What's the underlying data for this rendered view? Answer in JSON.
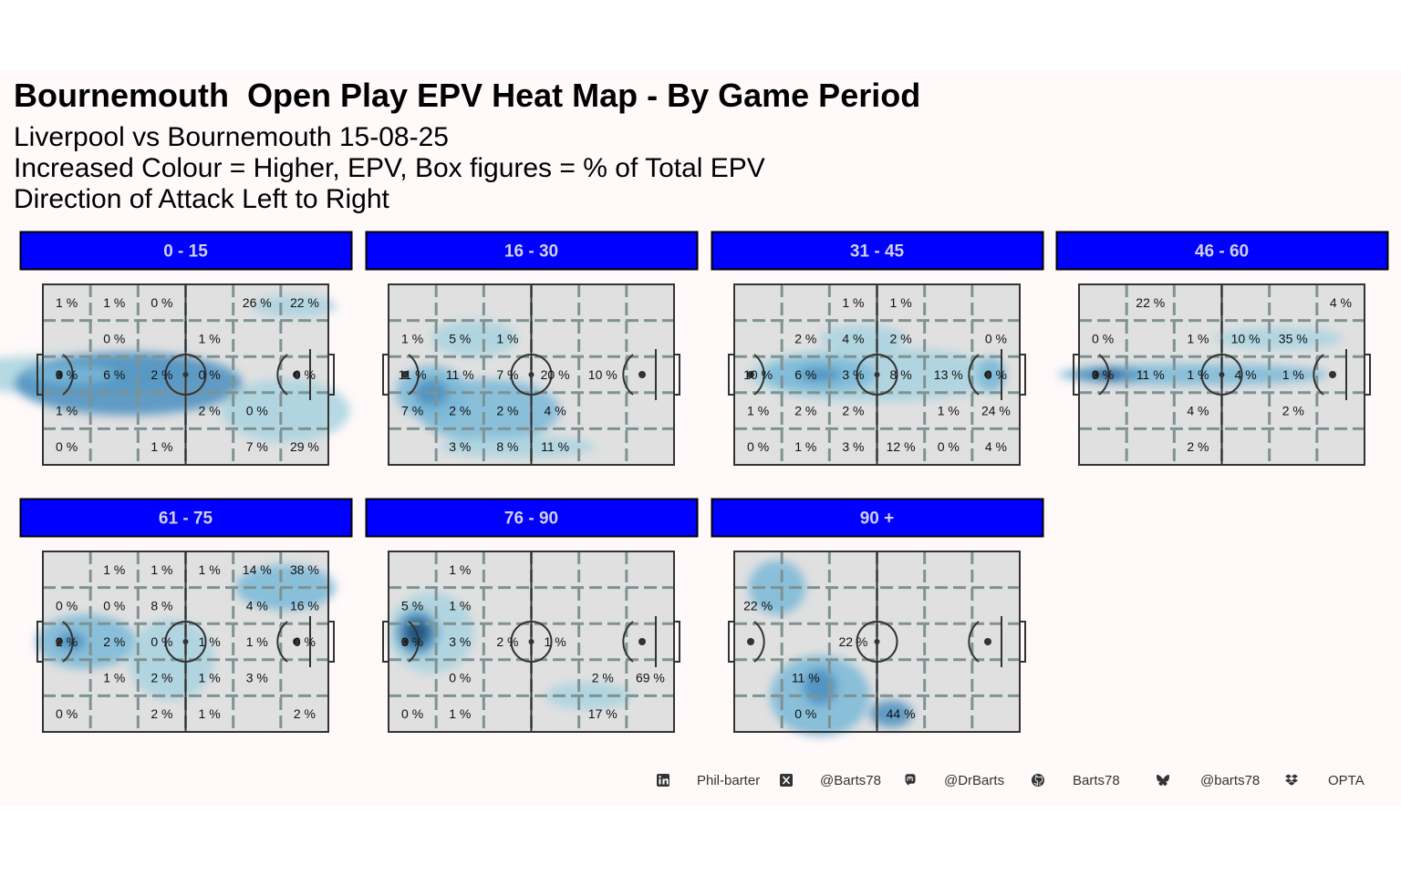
{
  "title": "Bournemouth  Open Play EPV Heat Map - By Game Period",
  "subtitle_lines": [
    "Liverpool vs Bournemouth 15-08-25",
    "Increased Colour = Higher, EPV, Box figures = % of Total EPV",
    "Direction of Attack Left to Right"
  ],
  "colors": {
    "background": "#fff9f9",
    "strip_fill": "#0000ff",
    "strip_text": "#cfcfe6",
    "pitch_fill": "#e0e0e0",
    "pitch_lines": "#333333",
    "grid_dashes": "#7f9292",
    "density_low": "#a9d3df",
    "density_high": "#1f4e79"
  },
  "chart_data": {
    "type": "heatmap",
    "direction_of_attack": "left to right",
    "grid": {
      "rows": 5,
      "cols": 6
    },
    "panels": [
      {
        "label": "0 - 15",
        "cells": [
          [
            "1 %",
            "1 %",
            "0 %",
            "",
            "26 %",
            "22 %"
          ],
          [
            "",
            "0 %",
            "",
            "1 %",
            "",
            ""
          ],
          [
            "3 %",
            "6 %",
            "2 %",
            "0 %",
            "",
            "0 %"
          ],
          [
            "1 %",
            "",
            "",
            "2 %",
            "0 %",
            ""
          ],
          [
            "0 %",
            "",
            "1 %",
            "",
            "7 %",
            "29 %"
          ]
        ]
      },
      {
        "label": "16 - 30",
        "cells": [
          [
            "",
            "",
            "",
            "",
            "",
            ""
          ],
          [
            "1 %",
            "5 %",
            "1 %",
            "",
            "",
            ""
          ],
          [
            "11 %",
            "11 %",
            "7 %",
            "20 %",
            "10 %",
            ""
          ],
          [
            "7 %",
            "2 %",
            "2 %",
            "4 %",
            "",
            ""
          ],
          [
            "",
            "3 %",
            "8 %",
            "11 %",
            "",
            ""
          ]
        ]
      },
      {
        "label": "31 - 45",
        "cells": [
          [
            "",
            "",
            "1 %",
            "1 %",
            "",
            ""
          ],
          [
            "",
            "2 %",
            "4 %",
            "2 %",
            "",
            "0 %"
          ],
          [
            "10 %",
            "6 %",
            "3 %",
            "8 %",
            "13 %",
            "0 %"
          ],
          [
            "1 %",
            "2 %",
            "2 %",
            "",
            "1 %",
            "24 %"
          ],
          [
            "0 %",
            "1 %",
            "3 %",
            "12 %",
            "0 %",
            "4 %"
          ]
        ]
      },
      {
        "label": "46 - 60",
        "cells": [
          [
            "",
            "22 %",
            "",
            "",
            "",
            "4 %"
          ],
          [
            "0 %",
            "",
            "1 %",
            "10 %",
            "35 %",
            ""
          ],
          [
            "3 %",
            "11 %",
            "1 %",
            "4 %",
            "1 %",
            ""
          ],
          [
            "",
            "",
            "4 %",
            "",
            "2 %",
            ""
          ],
          [
            "",
            "",
            "2 %",
            "",
            "",
            ""
          ]
        ]
      },
      {
        "label": "61 - 75",
        "cells": [
          [
            "",
            "1 %",
            "1 %",
            "1 %",
            "14 %",
            "38 %"
          ],
          [
            "0 %",
            "0 %",
            "8 %",
            "",
            "4 %",
            "16 %"
          ],
          [
            "2 %",
            "2 %",
            "0 %",
            "1 %",
            "1 %",
            "0 %"
          ],
          [
            "",
            "1 %",
            "2 %",
            "1 %",
            "3 %",
            ""
          ],
          [
            "0 %",
            "",
            "2 %",
            "1 %",
            "",
            "2 %"
          ]
        ]
      },
      {
        "label": "76 - 90",
        "cells": [
          [
            "",
            "1 %",
            "",
            "",
            "",
            ""
          ],
          [
            "5 %",
            "1 %",
            "",
            "",
            "",
            ""
          ],
          [
            "3 %",
            "3 %",
            "2 %",
            "1 %",
            "",
            ""
          ],
          [
            "",
            "0 %",
            "",
            "",
            "2 %",
            "69 %"
          ],
          [
            "0 %",
            "1 %",
            "",
            "",
            "17 %",
            ""
          ]
        ]
      },
      {
        "label": "90 +",
        "cells": [
          [
            "",
            "",
            "",
            "",
            "",
            ""
          ],
          [
            "22 %",
            "",
            "",
            "",
            "",
            ""
          ],
          [
            "",
            "",
            "22 %",
            "",
            "",
            ""
          ],
          [
            "",
            "11 %",
            "",
            "",
            "",
            ""
          ],
          [
            "",
            "0 %",
            "",
            "44 %",
            "",
            ""
          ]
        ]
      }
    ]
  },
  "footer": [
    {
      "icon": "linkedin-icon",
      "text": "Phil-barter"
    },
    {
      "icon": "x-twitter-icon",
      "text": "@Barts78"
    },
    {
      "icon": "mastodon-icon",
      "text": "@DrBarts"
    },
    {
      "icon": "github-icon",
      "text": "Barts78"
    },
    {
      "icon": "bluesky-icon",
      "text": "@barts78"
    },
    {
      "icon": "dropbox-icon",
      "text": "OPTA"
    }
  ]
}
